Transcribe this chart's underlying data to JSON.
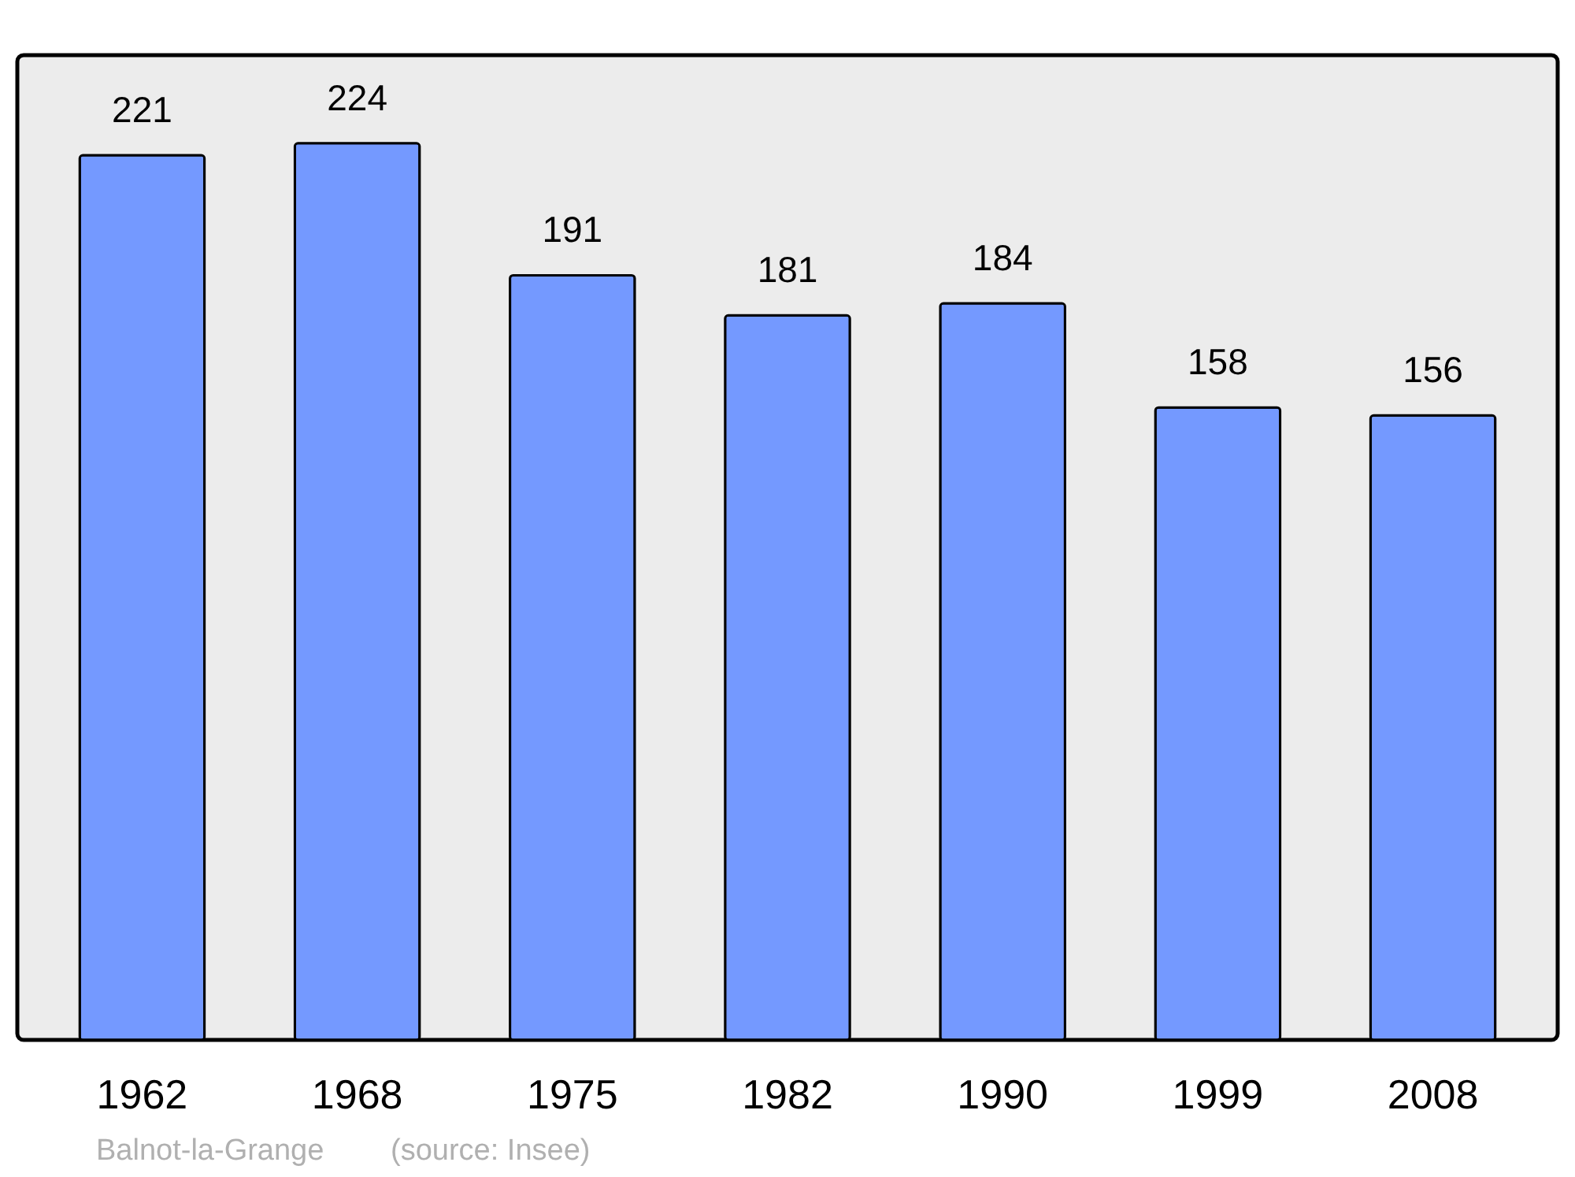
{
  "chart_data": {
    "type": "bar",
    "categories": [
      "1962",
      "1968",
      "1975",
      "1982",
      "1990",
      "1999",
      "2008"
    ],
    "series": [
      {
        "color": "#7499ff",
        "values": [
          221,
          224,
          191,
          181,
          184,
          158,
          156
        ]
      }
    ],
    "ylim": [
      0,
      246
    ],
    "data_labels": true,
    "grid": false,
    "tick_labels": "x",
    "annotations": [
      "Balnot-la-Grange",
      "(source: Insee)"
    ]
  }
}
